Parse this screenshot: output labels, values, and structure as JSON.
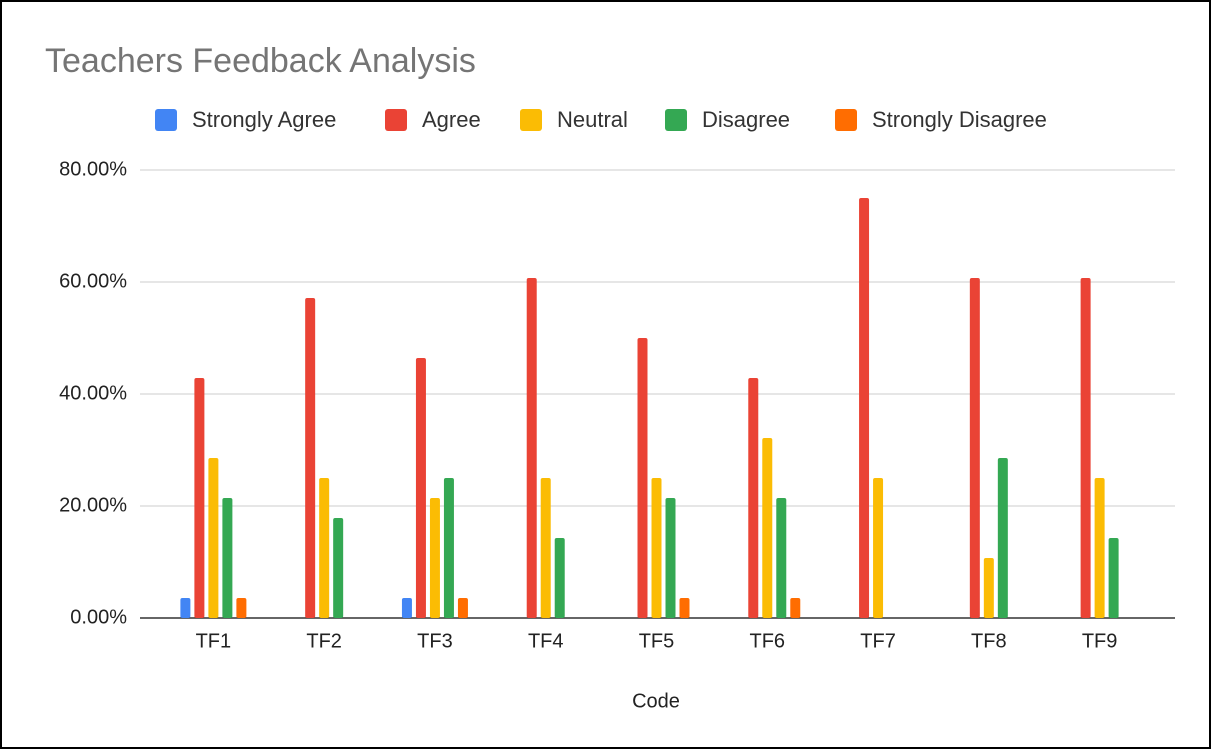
{
  "chart_data": {
    "type": "bar",
    "title": "Teachers Feedback Analysis",
    "x_label": "Code",
    "categories": [
      "TF1",
      "TF2",
      "TF3",
      "TF4",
      "TF5",
      "TF6",
      "TF7",
      "TF8",
      "TF9"
    ],
    "series": [
      {
        "name": "Strongly Agree",
        "color": "#4285f4",
        "values": [
          3.57,
          0,
          3.57,
          0,
          0,
          0,
          0,
          0,
          0
        ]
      },
      {
        "name": "Agree",
        "color": "#ea4335",
        "values": [
          42.86,
          57.14,
          46.43,
          60.71,
          50,
          42.86,
          75,
          60.71,
          60.71
        ]
      },
      {
        "name": "Neutral",
        "color": "#fbbc04",
        "values": [
          28.57,
          25,
          21.43,
          25,
          25,
          32.14,
          25,
          10.71,
          25
        ]
      },
      {
        "name": "Disagree",
        "color": "#34a853",
        "values": [
          21.43,
          17.86,
          25,
          14.29,
          21.43,
          21.43,
          0,
          28.57,
          14.29
        ]
      },
      {
        "name": "Strongly Disagree",
        "color": "#ff6d01",
        "values": [
          3.57,
          0,
          3.57,
          0,
          3.57,
          3.57,
          0,
          0,
          0
        ]
      }
    ],
    "ylim": [
      0,
      80
    ],
    "yticks": [
      {
        "value": 0,
        "label": "0.00%"
      },
      {
        "value": 20,
        "label": "20.00%"
      },
      {
        "value": 40,
        "label": "40.00%"
      },
      {
        "value": 60,
        "label": "60.00%"
      },
      {
        "value": 80,
        "label": "80.00%"
      }
    ],
    "grid": true,
    "legend": "top"
  }
}
